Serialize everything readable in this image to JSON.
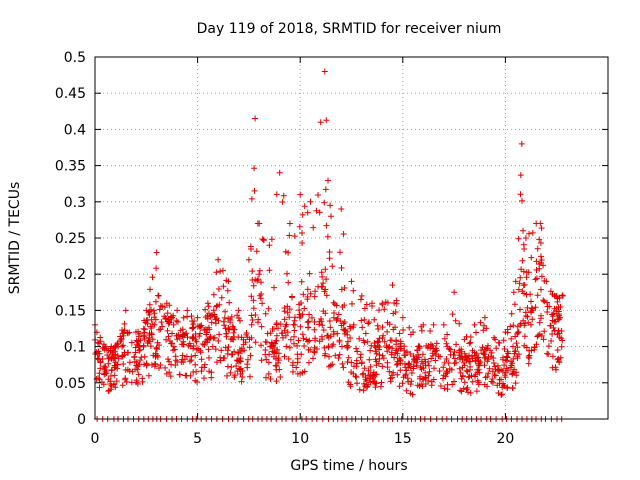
{
  "chart_data": {
    "type": "scatter",
    "title": "Day 119 of 2018, SRMTID for receiver nium",
    "xlabel": "GPS time / hours",
    "ylabel": "SRMTID / TECUs",
    "xlim": [
      0,
      25
    ],
    "ylim": [
      0,
      0.5
    ],
    "x_ticks": [
      0,
      5,
      10,
      15,
      20
    ],
    "x_tick_labels": [
      "0",
      "5",
      "10",
      "15",
      "20"
    ],
    "y_ticks": [
      0,
      0.05,
      0.1,
      0.15,
      0.2,
      0.25,
      0.3,
      0.35,
      0.4,
      0.45,
      0.5
    ],
    "y_tick_labels": [
      "0",
      "0.05",
      "0.1",
      "0.15",
      "0.2",
      "0.25",
      "0.3",
      "0.35",
      "0.4",
      "0.45",
      "0.5"
    ],
    "grid": true,
    "marker": "+",
    "color": "#e00000",
    "series": [
      {
        "name": "SRMTID",
        "envelope_note": "approximate median / peak values read from the dense point cloud",
        "x": [
          0.0,
          0.5,
          1.0,
          1.5,
          2.0,
          2.5,
          3.0,
          3.5,
          4.0,
          4.5,
          5.0,
          5.5,
          6.0,
          6.5,
          7.0,
          7.5,
          7.8,
          8.0,
          8.5,
          9.0,
          9.5,
          10.0,
          10.5,
          11.0,
          11.2,
          11.5,
          12.0,
          12.5,
          13.0,
          13.5,
          14.0,
          14.5,
          15.0,
          15.5,
          16.0,
          16.5,
          17.0,
          17.5,
          18.0,
          18.5,
          19.0,
          19.5,
          20.0,
          20.5,
          20.8,
          21.0,
          21.5,
          21.7,
          22.0,
          22.5,
          22.8
        ],
        "median": [
          0.08,
          0.07,
          0.07,
          0.09,
          0.08,
          0.1,
          0.13,
          0.11,
          0.1,
          0.1,
          0.09,
          0.1,
          0.11,
          0.1,
          0.08,
          0.09,
          0.18,
          0.15,
          0.08,
          0.1,
          0.12,
          0.11,
          0.12,
          0.14,
          0.15,
          0.12,
          0.1,
          0.08,
          0.07,
          0.07,
          0.08,
          0.09,
          0.07,
          0.06,
          0.08,
          0.07,
          0.07,
          0.08,
          0.06,
          0.06,
          0.07,
          0.06,
          0.06,
          0.08,
          0.17,
          0.13,
          0.15,
          0.2,
          0.14,
          0.12,
          0.12
        ],
        "peak": [
          0.13,
          0.1,
          0.1,
          0.15,
          0.12,
          0.15,
          0.23,
          0.16,
          0.15,
          0.15,
          0.14,
          0.16,
          0.22,
          0.19,
          0.15,
          0.22,
          0.415,
          0.27,
          0.24,
          0.34,
          0.27,
          0.31,
          0.3,
          0.41,
          0.48,
          0.28,
          0.29,
          0.19,
          0.17,
          0.16,
          0.16,
          0.185,
          0.14,
          0.12,
          0.13,
          0.13,
          0.13,
          0.175,
          0.11,
          0.13,
          0.14,
          0.11,
          0.12,
          0.19,
          0.38,
          0.25,
          0.27,
          0.27,
          0.19,
          0.17,
          0.17
        ],
        "zero_band_note": "a row of + markers at SRMTID = 0 across 0-23 h"
      }
    ]
  }
}
